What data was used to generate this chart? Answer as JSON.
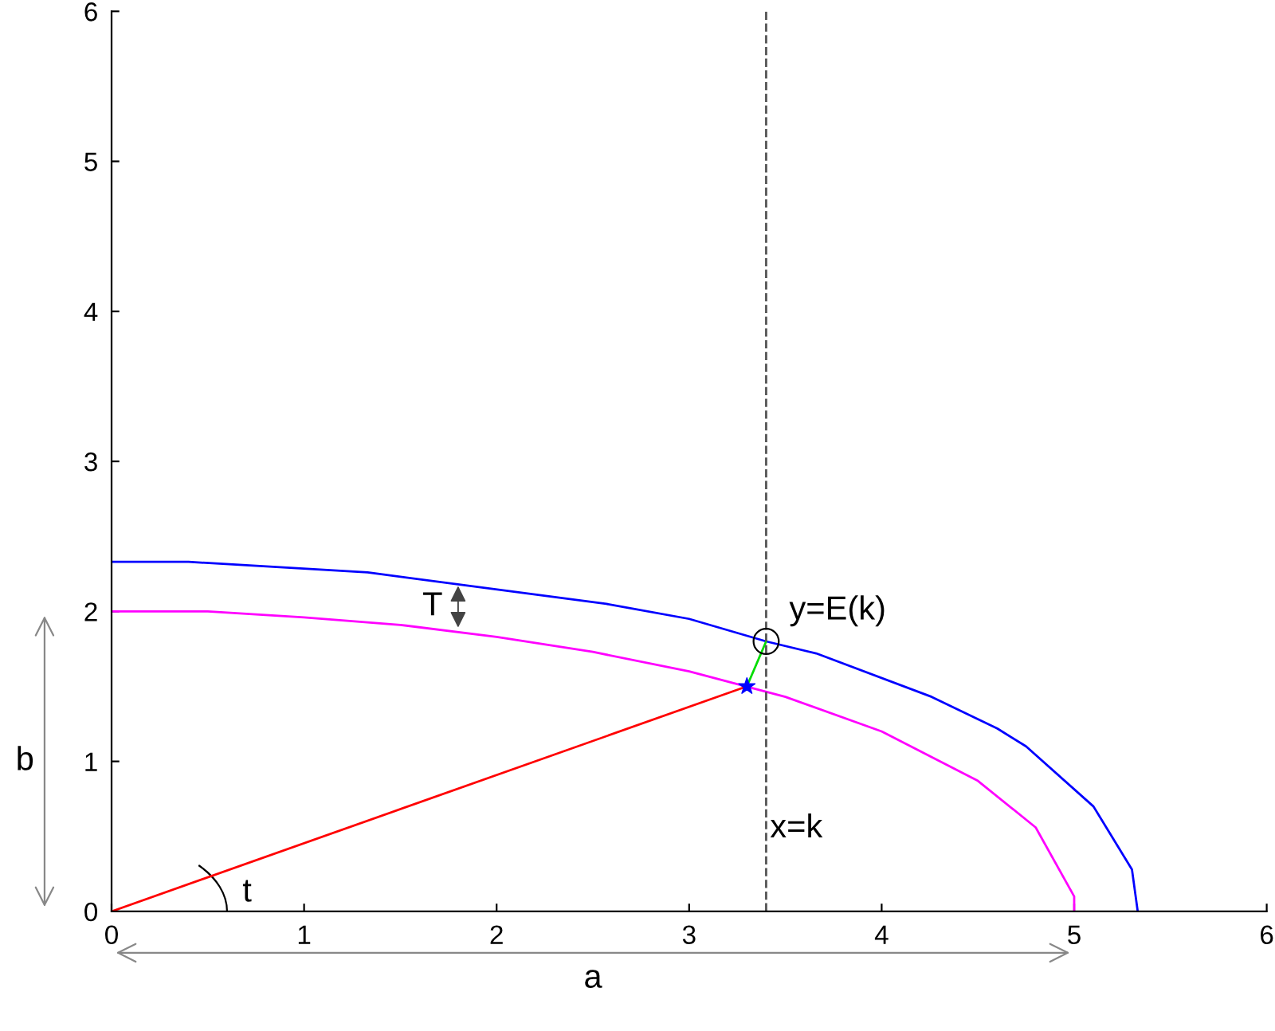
{
  "chart_data": {
    "type": "line",
    "series": [
      {
        "color": "#0000ff",
        "x": [
          0,
          0.4,
          1.33,
          2.57,
          3.0,
          3.4,
          3.66,
          4.26,
          4.6,
          4.75,
          5.1,
          5.3,
          5.33
        ],
        "values": [
          2.33,
          2.33,
          2.26,
          2.05,
          1.95,
          1.8,
          1.72,
          1.43,
          1.22,
          1.1,
          0.7,
          0.28,
          0
        ]
      },
      {
        "color": "#ff00ff",
        "x": [
          0,
          0.5,
          1,
          1.5,
          2,
          2.5,
          3,
          3.5,
          4,
          4.5,
          4.8,
          5,
          5
        ],
        "values": [
          2,
          2,
          1.96,
          1.91,
          1.83,
          1.73,
          1.6,
          1.43,
          1.2,
          0.87,
          0.56,
          0.1,
          0
        ]
      },
      {
        "color": "#ff0000",
        "x": [
          0,
          3.3
        ],
        "values": [
          0,
          1.5
        ]
      },
      {
        "color": "#00dd00",
        "x": [
          3.3,
          3.4
        ],
        "values": [
          1.5,
          1.8
        ]
      },
      {
        "type": "scatter",
        "color": "#0000ff",
        "marker": "star",
        "x": [
          3.3
        ],
        "values": [
          1.5
        ]
      },
      {
        "type": "scatter",
        "color": "#000000",
        "marker": "circle",
        "x": [
          3.4
        ],
        "values": [
          1.8
        ]
      }
    ],
    "ref_lines": [
      {
        "axis": "x",
        "value": 3.4,
        "label": "x=k",
        "color": "#555555",
        "line_style": "dashed"
      }
    ],
    "annotations": [
      {
        "text": "y=E(k)",
        "x": 3.4,
        "y": 1.8
      },
      {
        "text": "T",
        "x": 1.8,
        "y": 2.2
      },
      "t",
      "a",
      "b"
    ],
    "xlim": [
      0,
      6
    ],
    "ylim": [
      0,
      6
    ],
    "xticks": [
      0,
      1,
      2,
      3,
      4,
      5,
      6
    ],
    "yticks": [
      0,
      1,
      2,
      3,
      4,
      5,
      6
    ],
    "grid": false
  }
}
